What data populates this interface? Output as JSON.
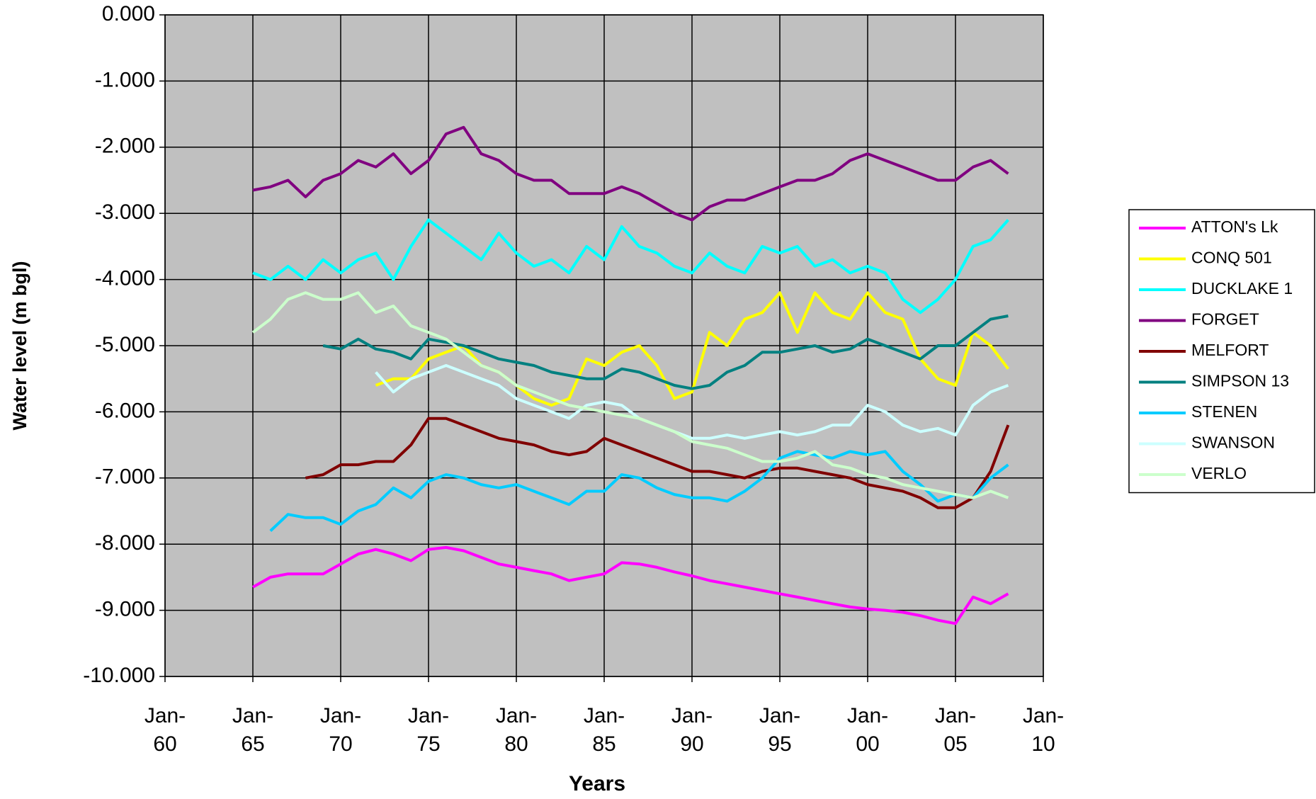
{
  "chart_data": {
    "type": "line",
    "xlabel": "Years",
    "ylabel": "Water level (m bgl)",
    "xlim": [
      1960,
      2010
    ],
    "ylim": [
      -10,
      0
    ],
    "xticks": [
      {
        "value": 1960,
        "label": "Jan-\n60"
      },
      {
        "value": 1965,
        "label": "Jan-\n65"
      },
      {
        "value": 1970,
        "label": "Jan-\n70"
      },
      {
        "value": 1975,
        "label": "Jan-\n75"
      },
      {
        "value": 1980,
        "label": "Jan-\n80"
      },
      {
        "value": 1985,
        "label": "Jan-\n85"
      },
      {
        "value": 1990,
        "label": "Jan-\n90"
      },
      {
        "value": 1995,
        "label": "Jan-\n95"
      },
      {
        "value": 2000,
        "label": "Jan-\n00"
      },
      {
        "value": 2005,
        "label": "Jan-\n05"
      },
      {
        "value": 2010,
        "label": "Jan-\n10"
      }
    ],
    "yticks": [
      {
        "value": 0,
        "label": "0.000"
      },
      {
        "value": -1,
        "label": "-1.000"
      },
      {
        "value": -2,
        "label": "-2.000"
      },
      {
        "value": -3,
        "label": "-3.000"
      },
      {
        "value": -4,
        "label": "-4.000"
      },
      {
        "value": -5,
        "label": "-5.000"
      },
      {
        "value": -6,
        "label": "-6.000"
      },
      {
        "value": -7,
        "label": "-7.000"
      },
      {
        "value": -8,
        "label": "-8.000"
      },
      {
        "value": -9,
        "label": "-9.000"
      },
      {
        "value": -10,
        "label": "-10.000"
      }
    ],
    "grid": true,
    "legend": "right",
    "x": [
      1965,
      1966,
      1967,
      1968,
      1969,
      1970,
      1971,
      1972,
      1973,
      1974,
      1975,
      1976,
      1977,
      1978,
      1979,
      1980,
      1981,
      1982,
      1983,
      1984,
      1985,
      1986,
      1987,
      1988,
      1989,
      1990,
      1991,
      1992,
      1993,
      1994,
      1995,
      1996,
      1997,
      1998,
      1999,
      2000,
      2001,
      2002,
      2003,
      2004,
      2005,
      2006,
      2007,
      2008
    ],
    "series": [
      {
        "name": "ATTON's Lk",
        "color": "#ff00ff",
        "values": [
          -8.65,
          -8.5,
          -8.45,
          -8.45,
          -8.45,
          -8.3,
          -8.15,
          -8.08,
          -8.15,
          -8.25,
          -8.08,
          -8.05,
          -8.1,
          -8.2,
          -8.3,
          -8.35,
          -8.4,
          -8.45,
          -8.55,
          -8.5,
          -8.45,
          -8.28,
          -8.3,
          -8.35,
          -8.42,
          -8.48,
          -8.55,
          -8.6,
          -8.65,
          -8.7,
          -8.75,
          -8.8,
          -8.85,
          -8.9,
          -8.95,
          -8.98,
          -9.0,
          -9.03,
          -9.08,
          -9.15,
          -9.2,
          -8.8,
          -8.9,
          -8.75
        ]
      },
      {
        "name": "CONQ 501",
        "color": "#ffff00",
        "values": [
          null,
          null,
          null,
          null,
          null,
          null,
          null,
          -5.6,
          -5.5,
          -5.5,
          -5.2,
          -5.1,
          -5.0,
          -5.3,
          -5.4,
          -5.6,
          -5.8,
          -5.9,
          -5.8,
          -5.2,
          -5.3,
          -5.1,
          -5.0,
          -5.3,
          -5.8,
          -5.7,
          -4.8,
          -5.0,
          -4.6,
          -4.5,
          -4.2,
          -4.8,
          -4.2,
          -4.5,
          -4.6,
          -4.2,
          -4.5,
          -4.6,
          -5.2,
          -5.5,
          -5.6,
          -4.8,
          -5.0,
          -5.35
        ]
      },
      {
        "name": "DUCKLAKE 1",
        "color": "#00ffff",
        "values": [
          -3.9,
          -4.0,
          -3.8,
          -4.0,
          -3.7,
          -3.9,
          -3.7,
          -3.6,
          -4.0,
          -3.5,
          -3.1,
          -3.3,
          -3.5,
          -3.7,
          -3.3,
          -3.6,
          -3.8,
          -3.7,
          -3.9,
          -3.5,
          -3.7,
          -3.2,
          -3.5,
          -3.6,
          -3.8,
          -3.9,
          -3.6,
          -3.8,
          -3.9,
          -3.5,
          -3.6,
          -3.5,
          -3.8,
          -3.7,
          -3.9,
          -3.8,
          -3.9,
          -4.3,
          -4.5,
          -4.3,
          -4.0,
          -3.5,
          -3.4,
          -3.1
        ]
      },
      {
        "name": "FORGET",
        "color": "#800080",
        "values": [
          -2.65,
          -2.6,
          -2.5,
          -2.75,
          -2.5,
          -2.4,
          -2.2,
          -2.3,
          -2.1,
          -2.4,
          -2.2,
          -1.8,
          -1.7,
          -2.1,
          -2.2,
          -2.4,
          -2.5,
          -2.5,
          -2.7,
          -2.7,
          -2.7,
          -2.6,
          -2.7,
          -2.85,
          -3.0,
          -3.1,
          -2.9,
          -2.8,
          -2.8,
          -2.7,
          -2.6,
          -2.5,
          -2.5,
          -2.4,
          -2.2,
          -2.1,
          -2.2,
          -2.3,
          -2.4,
          -2.5,
          -2.5,
          -2.3,
          -2.2,
          -2.4
        ]
      },
      {
        "name": "MELFORT",
        "color": "#800000",
        "values": [
          null,
          null,
          null,
          -7.0,
          -6.95,
          -6.8,
          -6.8,
          -6.75,
          -6.75,
          -6.5,
          -6.1,
          -6.1,
          -6.2,
          -6.3,
          -6.4,
          -6.45,
          -6.5,
          -6.6,
          -6.65,
          -6.6,
          -6.4,
          -6.5,
          -6.6,
          -6.7,
          -6.8,
          -6.9,
          -6.9,
          -6.95,
          -7.0,
          -6.9,
          -6.85,
          -6.85,
          -6.9,
          -6.95,
          -7.0,
          -7.1,
          -7.15,
          -7.2,
          -7.3,
          -7.45,
          -7.45,
          -7.3,
          -6.9,
          -6.2
        ]
      },
      {
        "name": "SIMPSON 13",
        "color": "#008080",
        "values": [
          null,
          null,
          null,
          null,
          -5.0,
          -5.05,
          -4.9,
          -5.05,
          -5.1,
          -5.2,
          -4.9,
          -4.95,
          -5.0,
          -5.1,
          -5.2,
          -5.25,
          -5.3,
          -5.4,
          -5.45,
          -5.5,
          -5.5,
          -5.35,
          -5.4,
          -5.5,
          -5.6,
          -5.65,
          -5.6,
          -5.4,
          -5.3,
          -5.1,
          -5.1,
          -5.05,
          -5.0,
          -5.1,
          -5.05,
          -4.9,
          -5.0,
          -5.1,
          -5.2,
          -5.0,
          -5.0,
          -4.8,
          -4.6,
          -4.55
        ]
      },
      {
        "name": "STENEN",
        "color": "#00ccff",
        "values": [
          null,
          -7.8,
          -7.55,
          -7.6,
          -7.6,
          -7.7,
          -7.5,
          -7.4,
          -7.15,
          -7.3,
          -7.05,
          -6.95,
          -7.0,
          -7.1,
          -7.15,
          -7.1,
          -7.2,
          -7.3,
          -7.4,
          -7.2,
          -7.2,
          -6.95,
          -7.0,
          -7.15,
          -7.25,
          -7.3,
          -7.3,
          -7.35,
          -7.2,
          -7.0,
          -6.7,
          -6.6,
          -6.65,
          -6.7,
          -6.6,
          -6.65,
          -6.6,
          -6.9,
          -7.1,
          -7.35,
          -7.25,
          -7.3,
          -7.0,
          -6.8
        ]
      },
      {
        "name": "SWANSON",
        "color": "#ccffff",
        "values": [
          null,
          null,
          null,
          null,
          null,
          null,
          null,
          -5.4,
          -5.7,
          -5.5,
          -5.4,
          -5.3,
          -5.4,
          -5.5,
          -5.6,
          -5.8,
          -5.9,
          -6.0,
          -6.1,
          -5.9,
          -5.85,
          -5.9,
          -6.1,
          -6.2,
          -6.3,
          -6.4,
          -6.4,
          -6.35,
          -6.4,
          -6.35,
          -6.3,
          -6.35,
          -6.3,
          -6.2,
          -6.2,
          -5.9,
          -6.0,
          -6.2,
          -6.3,
          -6.25,
          -6.35,
          -5.9,
          -5.7,
          -5.6
        ]
      },
      {
        "name": "VERLO",
        "color": "#ccffcc",
        "values": [
          -4.8,
          -4.6,
          -4.3,
          -4.2,
          -4.3,
          -4.3,
          -4.2,
          -4.5,
          -4.4,
          -4.7,
          -4.8,
          -4.9,
          -5.1,
          -5.3,
          -5.4,
          -5.6,
          -5.7,
          -5.8,
          -5.9,
          -5.95,
          -6.0,
          -6.05,
          -6.1,
          -6.2,
          -6.3,
          -6.45,
          -6.5,
          -6.55,
          -6.65,
          -6.75,
          -6.75,
          -6.7,
          -6.6,
          -6.8,
          -6.85,
          -6.95,
          -7.0,
          -7.1,
          -7.15,
          -7.2,
          -7.25,
          -7.3,
          -7.2,
          -7.3
        ]
      }
    ]
  }
}
